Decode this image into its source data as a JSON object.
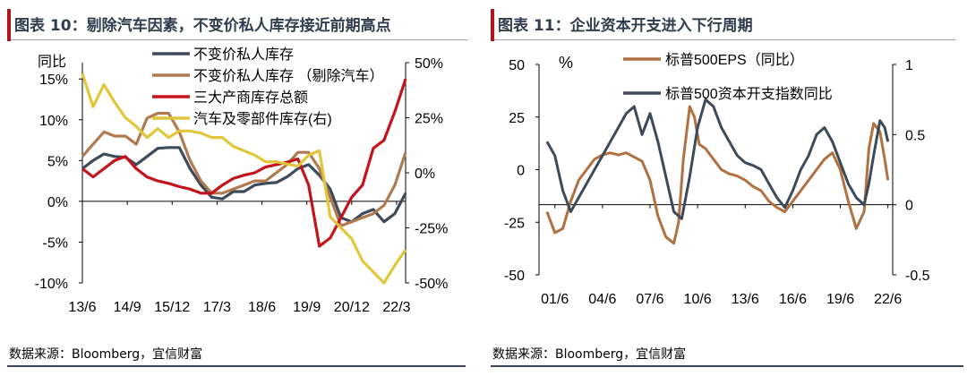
{
  "charts": [
    {
      "figure_title": "图表 10：剔除汽车因素，不变价私人库存接近前期高点",
      "source": "数据来源：Bloomberg，宜信财富",
      "left_axis_label": "同比",
      "left_ticks": [
        "15%",
        "10%",
        "5%",
        "0%",
        "-5%",
        "-10%"
      ],
      "right_ticks": [
        "50%",
        "25%",
        "0%",
        "-25%",
        "-50%"
      ],
      "x_ticks": [
        "13/6",
        "14/9",
        "15/12",
        "17/3",
        "18/6",
        "19/9",
        "20/12",
        "22/3"
      ]
    },
    {
      "figure_title": "图表 11：企业资本开支进入下行周期",
      "source": "数据来源：Bloomberg，宜信财富",
      "left_axis_label": "%",
      "left_ticks": [
        "50",
        "25",
        "0",
        "-25",
        "-50"
      ],
      "right_ticks": [
        "1",
        "0.5",
        "0",
        "-0.5"
      ],
      "x_ticks": [
        "01/6",
        "04/6",
        "07/6",
        "10/6",
        "13/6",
        "16/6",
        "19/6",
        "22/6"
      ]
    }
  ],
  "chart_data": [
    {
      "type": "line",
      "x_index_range": [
        0,
        36
      ],
      "x_tick_index": [
        0,
        5,
        10,
        15,
        20,
        25,
        30,
        35
      ],
      "x_tick_labels": [
        "13/6",
        "14/9",
        "15/12",
        "17/3",
        "18/6",
        "19/9",
        "20/12",
        "22/3"
      ],
      "ylim": [
        -10,
        17
      ],
      "y2lim": [
        -50,
        50
      ],
      "legend_position": "top-right",
      "series": [
        {
          "name": "不变价私人库存",
          "axis": "left",
          "color": "#3c4a59",
          "values": [
            4.0,
            5.0,
            5.8,
            5.5,
            5.4,
            4.5,
            5.5,
            6.5,
            6.6,
            6.6,
            4.0,
            2.0,
            0.5,
            0.3,
            1.2,
            1.2,
            2.0,
            2.2,
            2.3,
            3.0,
            4.0,
            4.5,
            3.2,
            1.5,
            -2.0,
            -2.5,
            -1.5,
            -1.0,
            -2.5,
            -1.5,
            1.0
          ]
        },
        {
          "name": "不变价私人库存 （剔除汽车）",
          "axis": "left",
          "color": "#b07a50",
          "values": [
            5.5,
            7.0,
            8.5,
            8.0,
            8.0,
            7.0,
            10.2,
            10.8,
            10.8,
            8.5,
            5.0,
            2.5,
            1.0,
            1.0,
            1.5,
            2.0,
            2.5,
            2.5,
            3.5,
            4.5,
            6.0,
            6.0,
            4.0,
            0.5,
            -3.0,
            -2.5,
            -2.0,
            -1.5,
            -0.5,
            2.0,
            6.0
          ]
        },
        {
          "name": "三大产商库存总额",
          "axis": "left",
          "color": "#c4131b",
          "values": [
            4.0,
            3.0,
            4.0,
            5.0,
            5.5,
            4.0,
            3.0,
            2.5,
            2.2,
            1.8,
            1.5,
            1.0,
            1.0,
            2.0,
            2.8,
            3.2,
            3.5,
            4.2,
            4.5,
            4.8,
            5.2,
            2.0,
            -5.5,
            -4.5,
            -2.0,
            0.5,
            2.0,
            6.5,
            7.5,
            11.0,
            15.0
          ]
        },
        {
          "name": "汽车及零部件库存(右)",
          "axis": "right",
          "color": "#e0c63a",
          "values": [
            45,
            30,
            40,
            32,
            25,
            21,
            16,
            20,
            16,
            19,
            19,
            18,
            16,
            16,
            12,
            10,
            8,
            5,
            5,
            4,
            3,
            8,
            10,
            -20,
            -25,
            -30,
            -40,
            -45,
            -50,
            -42,
            -35
          ]
        }
      ]
    },
    {
      "type": "line",
      "x_range": [
        2000.5,
        2022.8
      ],
      "x_tick_values": [
        2001.5,
        2004.5,
        2007.5,
        2010.5,
        2013.5,
        2016.5,
        2019.5,
        2022.5
      ],
      "x_tick_labels": [
        "01/6",
        "04/6",
        "07/6",
        "10/6",
        "13/6",
        "16/6",
        "19/6",
        "22/6"
      ],
      "ylim": [
        -50,
        50
      ],
      "y2lim": [
        -0.5,
        1
      ],
      "legend_position": "top",
      "series": [
        {
          "name": "标普500EPS（同比）",
          "axis": "left",
          "color": "#b07040",
          "x": [
            2001.0,
            2001.5,
            2002.0,
            2002.5,
            2003.0,
            2003.5,
            2004.0,
            2004.5,
            2005.0,
            2005.5,
            2006.0,
            2006.5,
            2007.0,
            2007.5,
            2008.0,
            2008.5,
            2009.0,
            2009.3,
            2009.6,
            2010.0,
            2010.3,
            2010.6,
            2011.0,
            2011.5,
            2012.0,
            2012.5,
            2013.0,
            2013.5,
            2014.0,
            2014.5,
            2015.0,
            2015.5,
            2016.0,
            2016.5,
            2017.0,
            2017.5,
            2018.0,
            2018.5,
            2019.0,
            2019.5,
            2020.0,
            2020.5,
            2021.0,
            2021.3,
            2021.6,
            2022.0,
            2022.3,
            2022.5
          ],
          "y": [
            -20,
            -30,
            -28,
            -15,
            -5,
            0,
            5,
            7,
            8,
            7,
            8,
            6,
            4,
            -5,
            -22,
            -32,
            -35,
            -25,
            5,
            30,
            25,
            12,
            10,
            5,
            0,
            -2,
            -3,
            -5,
            -8,
            -10,
            -15,
            -18,
            -20,
            -15,
            -10,
            -5,
            0,
            5,
            8,
            0,
            -15,
            -28,
            -20,
            10,
            22,
            18,
            5,
            -5
          ]
        },
        {
          "name": "标普500资本开支指数同比",
          "axis": "right",
          "color": "#3c4a59",
          "x": [
            2001.0,
            2001.5,
            2002.0,
            2002.5,
            2003.0,
            2003.5,
            2004.0,
            2004.5,
            2005.0,
            2005.5,
            2006.0,
            2006.5,
            2007.0,
            2007.5,
            2008.0,
            2008.5,
            2009.0,
            2009.5,
            2010.0,
            2010.5,
            2011.0,
            2011.5,
            2012.0,
            2012.5,
            2013.0,
            2013.5,
            2014.0,
            2014.5,
            2015.0,
            2015.5,
            2016.0,
            2016.5,
            2017.0,
            2017.5,
            2018.0,
            2018.5,
            2019.0,
            2019.5,
            2020.0,
            2020.5,
            2021.0,
            2021.3,
            2021.6,
            2022.0,
            2022.3,
            2022.5
          ],
          "y": [
            0.45,
            0.35,
            0.1,
            -0.05,
            0.05,
            0.15,
            0.25,
            0.35,
            0.45,
            0.55,
            0.65,
            0.7,
            0.5,
            0.65,
            0.45,
            0.2,
            -0.05,
            -0.1,
            0.2,
            0.55,
            0.75,
            0.7,
            0.55,
            0.45,
            0.35,
            0.3,
            0.28,
            0.25,
            0.15,
            0.05,
            -0.02,
            0.1,
            0.25,
            0.35,
            0.5,
            0.55,
            0.45,
            0.3,
            0.15,
            0.05,
            0.0,
            0.15,
            0.35,
            0.6,
            0.55,
            0.45
          ]
        }
      ]
    }
  ]
}
